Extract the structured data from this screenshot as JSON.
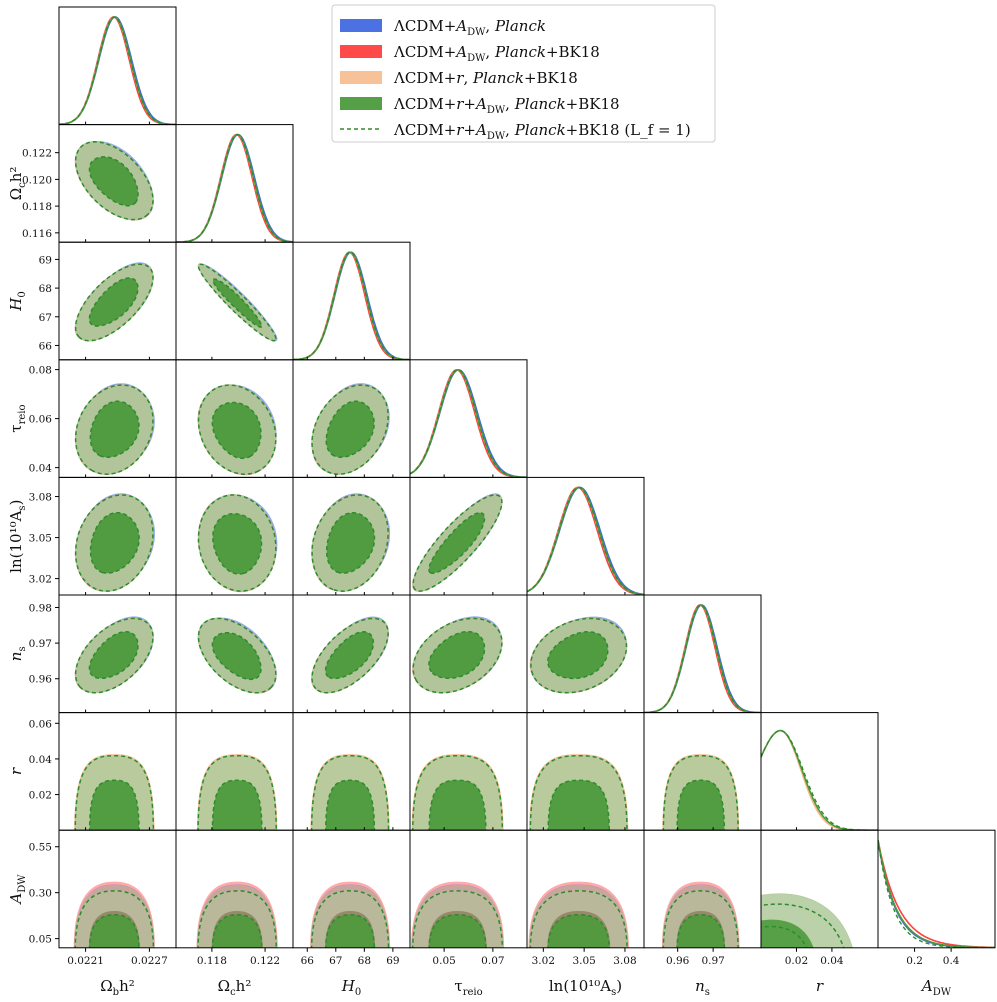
{
  "chart_data": {
    "type": "triangle-corner-plot",
    "title": "",
    "parameters": [
      {
        "key": "ombh2",
        "label_base": "Ω",
        "label_sub": "b",
        "label_post": "h²",
        "range": [
          0.02185,
          0.02295
        ],
        "ticks": [
          0.0221,
          0.0227
        ],
        "tick_labels": [
          "0.0221",
          "0.0227"
        ],
        "mean": 0.02237,
        "sigma": 0.00015
      },
      {
        "key": "omch2",
        "label_base": "Ω",
        "label_sub": "c",
        "label_post": "h²",
        "range": [
          0.1153,
          0.1241
        ],
        "ticks": [
          0.118,
          0.122
        ],
        "tick_labels": [
          "0.118",
          "0.122"
        ],
        "mean": 0.1199,
        "sigma": 0.0012
      },
      {
        "key": "H0",
        "label_base": "H",
        "label_sub": "0",
        "label_post": "",
        "range": [
          65.5,
          69.6
        ],
        "ticks": [
          66,
          67,
          68,
          69
        ],
        "tick_labels": [
          "66",
          "67",
          "68",
          "69"
        ],
        "mean": 67.5,
        "sigma": 0.55
      },
      {
        "key": "tau_reio",
        "label_base": "τ",
        "label_sub": "reio",
        "label_post": "",
        "range": [
          0.036,
          0.084
        ],
        "ticks": [
          0.05,
          0.07
        ],
        "tick_labels": [
          "0.05",
          "0.07"
        ],
        "mean": 0.0555,
        "sigma": 0.0075
      },
      {
        "key": "lnAs",
        "label_base": "ln(10¹⁰A",
        "label_sub": "s",
        "label_post": ")",
        "range": [
          3.008,
          3.094
        ],
        "ticks": [
          3.02,
          3.05,
          3.08
        ],
        "tick_labels": [
          "3.02",
          "3.05",
          "3.08"
        ],
        "mean": 3.046,
        "sigma": 0.0145
      },
      {
        "key": "ns",
        "label_base": "n",
        "label_sub": "s",
        "label_post": "",
        "range": [
          0.9505,
          0.9835
        ],
        "ticks": [
          0.96,
          0.97
        ],
        "tick_labels": [
          "0.96",
          "0.97"
        ],
        "mean": 0.9665,
        "sigma": 0.0043
      },
      {
        "key": "r",
        "label_base": "r",
        "label_sub": "",
        "label_post": "",
        "range": [
          0.0,
          0.066
        ],
        "ticks": [
          0.02,
          0.04
        ],
        "tick_labels": [
          "0.02",
          "0.04"
        ],
        "mean": 0.0,
        "sigma": 0.0
      },
      {
        "key": "A_DW",
        "label_base": "A",
        "label_sub": "DW",
        "label_post": "",
        "range": [
          0.0,
          0.64
        ],
        "ticks": [
          0.2,
          0.4
        ],
        "tick_labels": [
          "0.2",
          "0.4"
        ],
        "mean": 0.0,
        "sigma": 0.0
      }
    ],
    "diag_ticks": {
      "omch2": {
        "ticks": [
          0.116,
          0.118,
          0.12,
          0.122
        ],
        "tick_labels": [
          "0.116",
          "0.118",
          "0.120",
          "0.122"
        ]
      },
      "H0": {
        "ticks": [
          66,
          67,
          68,
          69
        ],
        "tick_labels": [
          "66",
          "67",
          "68",
          "69"
        ]
      },
      "tau_reio": {
        "ticks": [
          0.04,
          0.06,
          0.08
        ],
        "tick_labels": [
          "0.04",
          "0.06",
          "0.08"
        ]
      },
      "lnAs": {
        "ticks": [
          3.02,
          3.05,
          3.08
        ],
        "tick_labels": [
          "3.02",
          "3.05",
          "3.08"
        ]
      },
      "ns": {
        "ticks": [
          0.96,
          0.97,
          0.98
        ],
        "tick_labels": [
          "0.96",
          "0.97",
          "0.98"
        ]
      },
      "r": {
        "ticks": [
          0.02,
          0.04,
          0.06
        ],
        "tick_labels": [
          "0.02",
          "0.04",
          "0.06"
        ]
      },
      "A_DW": {
        "ticks": [
          0.05,
          0.3,
          0.55
        ],
        "tick_labels": [
          "0.05",
          "0.30",
          "0.55"
        ]
      }
    },
    "correlations": {
      "omch2|ombh2": -0.5,
      "H0|ombh2": 0.65,
      "H0|omch2": -0.95,
      "tau_reio|ombh2": 0.2,
      "tau_reio|omch2": -0.2,
      "tau_reio|H0": 0.3,
      "lnAs|ombh2": 0.2,
      "lnAs|omch2": -0.1,
      "lnAs|H0": 0.2,
      "lnAs|tau_reio": 0.85,
      "ns|ombh2": 0.5,
      "ns|omch2": -0.5,
      "ns|H0": 0.6,
      "ns|tau_reio": 0.35,
      "ns|lnAs": 0.25
    },
    "r_constraint": {
      "upper_68": 0.028,
      "upper_95": 0.042,
      "peak": 0.011
    },
    "adw_constraint": {
      "upper_68_bk18": 0.2,
      "upper_95_bk18": 0.36,
      "upper_68_dw_r": 0.18,
      "upper_95_dw_r": 0.31
    },
    "series": [
      {
        "name": "ΛCDM+A_DW, Planck",
        "label_parts": [
          "ΛCDM+",
          "A",
          "DW",
          ", ",
          "Planck",
          ""
        ],
        "color": "#4169e1",
        "style": "filled"
      },
      {
        "name": "ΛCDM+A_DW, Planck+BK18",
        "label_parts": [
          "ΛCDM+",
          "A",
          "DW",
          ", ",
          "Planck",
          "+BK18"
        ],
        "color": "#ff4040",
        "style": "filled"
      },
      {
        "name": "ΛCDM+r, Planck+BK18",
        "label_parts": [
          "ΛCDM+",
          "r",
          "",
          ", ",
          "Planck",
          "+BK18"
        ],
        "color": "#f7b787",
        "style": "filled"
      },
      {
        "name": "ΛCDM+r+A_DW, Planck+BK18",
        "label_parts": [
          "ΛCDM+",
          "r+A",
          "DW",
          ", ",
          "Planck",
          "+BK18"
        ],
        "color": "#4c9a3c",
        "style": "filled"
      },
      {
        "name": "ΛCDM+r+A_DW, Planck+BK18 (L_f = 1)",
        "label_parts": [
          "ΛCDM+",
          "r+A",
          "DW",
          ", ",
          "Planck",
          "+BK18 (L_f = 1)"
        ],
        "color": "#2e8b2e",
        "style": "dashed"
      }
    ]
  }
}
